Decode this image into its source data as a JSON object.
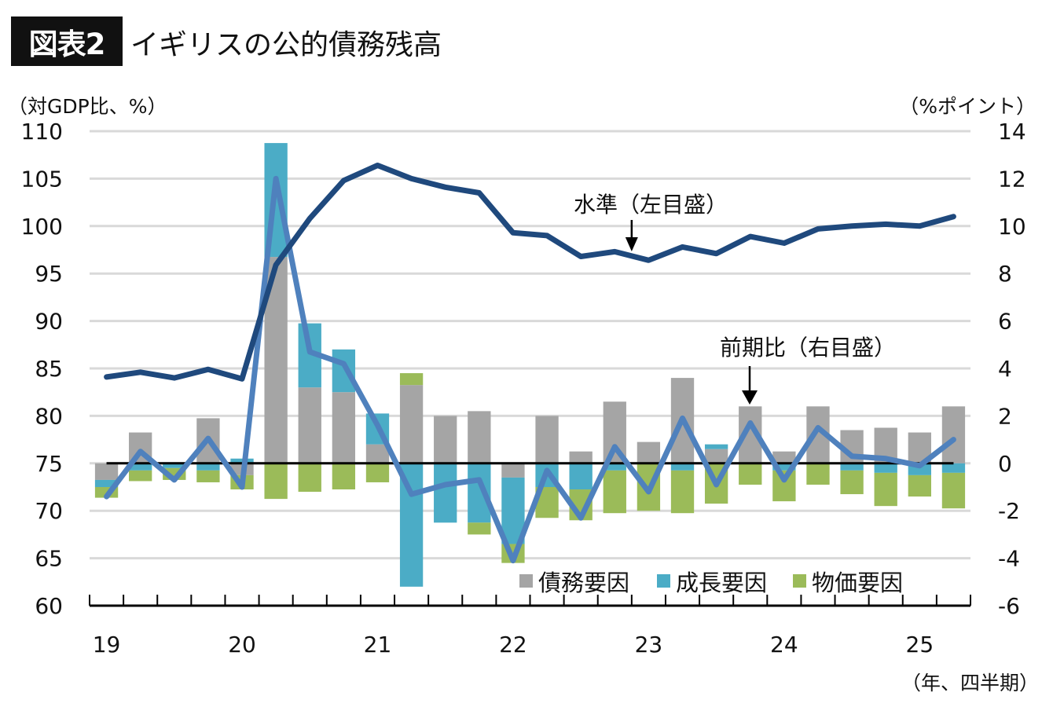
{
  "header": {
    "badge": "図表2",
    "title": "イギリスの公的債務残高"
  },
  "axes": {
    "left_unit": "（対GDP比、%）",
    "right_unit": "（%ポイント）",
    "x_unit": "（年、四半期）"
  },
  "colors": {
    "debt": "#a5a5a5",
    "growth": "#4bacc6",
    "price": "#9bbb59",
    "level_line": "#1f497d",
    "change_line": "#4f81bd",
    "zero_line": "#000000",
    "grid": "#d9d9d9"
  },
  "chart_data": {
    "type": "bar",
    "title": "イギリスの公的債務残高",
    "xlabel": "（年、四半期）",
    "ylabel": "（対GDP比、%）",
    "y2label": "（%ポイント）",
    "ylim": [
      60,
      110
    ],
    "y2lim": [
      -6,
      14
    ],
    "yticks": [
      "110",
      "105",
      "100",
      "95",
      "90",
      "85",
      "80",
      "75",
      "70",
      "65",
      "60"
    ],
    "y2ticks": [
      "14",
      "12",
      "10",
      "8",
      "6",
      "4",
      "2",
      "0",
      "-2",
      "-4",
      "-6"
    ],
    "year_labels": [
      "19",
      "20",
      "21",
      "22",
      "23",
      "24",
      "25"
    ],
    "grid": true,
    "legend_position": "bottom-right",
    "categories": [
      "19Q1",
      "19Q2",
      "19Q3",
      "19Q4",
      "20Q1",
      "20Q2",
      "20Q3",
      "20Q4",
      "21Q1",
      "21Q2",
      "21Q3",
      "21Q4",
      "22Q1",
      "22Q2",
      "22Q3",
      "22Q4",
      "23Q1",
      "23Q2",
      "23Q3",
      "23Q4",
      "24Q1",
      "24Q2",
      "24Q3",
      "24Q4",
      "25Q1",
      "25Q2"
    ],
    "series": [
      {
        "name": "債務要因",
        "type": "stacked-bar",
        "axis": "right",
        "values": [
          -0.7,
          1.3,
          0,
          1.9,
          -0.5,
          8.7,
          3.2,
          3.0,
          0.8,
          3.3,
          2.0,
          2.2,
          -0.6,
          2.0,
          0.5,
          2.6,
          0.9,
          3.6,
          0.6,
          2.4,
          0.5,
          2.4,
          1.4,
          1.5,
          1.3,
          2.4
        ]
      },
      {
        "name": "成長要因",
        "type": "stacked-bar",
        "axis": "right",
        "values": [
          -0.3,
          -0.3,
          -0.2,
          -0.3,
          0.2,
          4.8,
          2.7,
          1.8,
          1.3,
          -5.2,
          -2.5,
          -2.5,
          -2.8,
          -1.0,
          -1.1,
          -0.3,
          0,
          -0.3,
          0.2,
          0,
          -0.3,
          0,
          -0.3,
          -0.4,
          -0.5,
          -0.4
        ]
      },
      {
        "name": "物価要因",
        "type": "stacked-bar",
        "axis": "right",
        "values": [
          -0.45,
          -0.45,
          -0.5,
          -0.5,
          -0.6,
          -1.5,
          -1.2,
          -1.1,
          -0.8,
          0.5,
          0,
          -0.5,
          -0.8,
          -1.3,
          -1.3,
          -1.8,
          -2.0,
          -1.8,
          -1.7,
          -0.9,
          -1.3,
          -0.9,
          -1.0,
          -1.4,
          -0.9,
          -1.5
        ]
      },
      {
        "name": "前期比（右目盛）",
        "type": "line",
        "axis": "right",
        "values": [
          -1.4,
          0.5,
          -0.7,
          1.05,
          -1.0,
          12.0,
          4.7,
          4.2,
          1.6,
          -1.3,
          -0.9,
          -0.7,
          -4.1,
          -0.3,
          -2.3,
          0.7,
          -1.2,
          1.9,
          -0.9,
          1.7,
          -0.7,
          1.5,
          0.3,
          0.2,
          -0.1,
          1.0
        ]
      },
      {
        "name": "水準（左目盛）",
        "type": "line",
        "axis": "left",
        "values": [
          84.1,
          84.6,
          84.0,
          84.9,
          83.9,
          95.9,
          100.8,
          104.8,
          106.4,
          105.0,
          104.1,
          103.5,
          99.3,
          99.0,
          96.8,
          97.3,
          96.4,
          97.8,
          97.1,
          98.9,
          98.2,
          99.7,
          100.0,
          100.2,
          100.0,
          101.0
        ]
      }
    ],
    "annotations": [
      {
        "text": "水準（左目盛）",
        "target": "23Q1"
      },
      {
        "text": "前期比（右目盛）",
        "target": "23Q4"
      }
    ],
    "legend": [
      "債務要因",
      "成長要因",
      "物価要因"
    ]
  }
}
